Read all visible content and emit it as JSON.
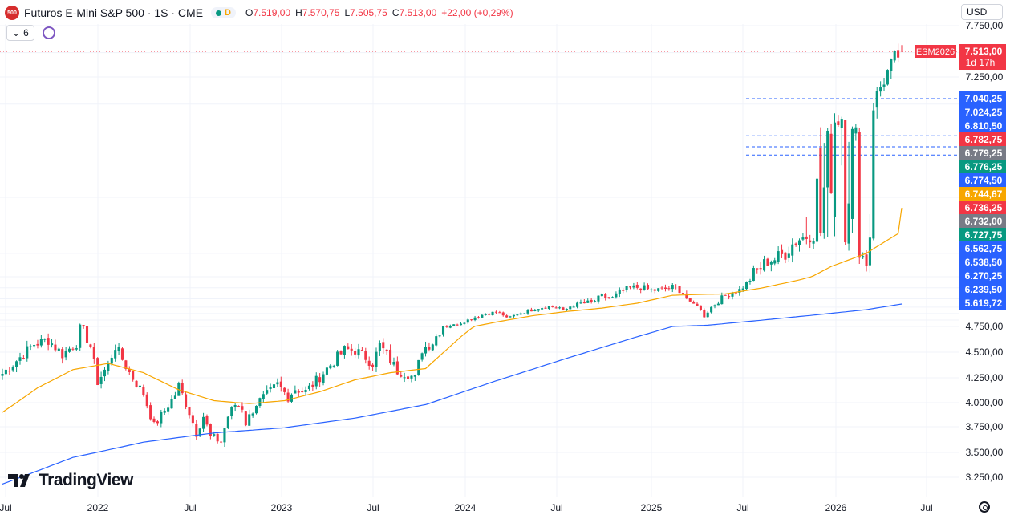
{
  "header": {
    "symbol_badge": "500",
    "title": "Futuros E-Mini S&P 500 · 1S · CME",
    "status_badge": "D",
    "ohlc": {
      "o_label": "O",
      "o": "7.519,00",
      "h_label": "H",
      "h": "7.570,75",
      "l_label": "L",
      "l": "7.505,75",
      "c_label": "C",
      "c": "7.513,00",
      "change": "+22,00 (+0,29%)"
    }
  },
  "toolbar": {
    "indicators_count": "6",
    "currency": "USD"
  },
  "branding": {
    "logo_text": "TradingView"
  },
  "colors": {
    "up": "#089981",
    "down": "#f23645",
    "ma_slow": "#f7a600",
    "ma_fast": "#2962ff",
    "blue_label": "#2962ff",
    "grey_label": "#787b86"
  },
  "chart_data": {
    "type": "candlestick",
    "ylim": [
      3150,
      7850
    ],
    "x_tick_labels": [
      "Jul",
      "2022",
      "Jul",
      "2023",
      "Jul",
      "2024",
      "Jul",
      "2025",
      "Jul",
      "2026",
      "Jul"
    ],
    "y_tick_labels": [
      "7.750,00",
      "7.250,00",
      "4.750,00",
      "4.500,00",
      "4.250,00",
      "4.000,00",
      "3.750,00",
      "3.500,00",
      "3.250,00"
    ],
    "last_price": {
      "value": "7.513,00",
      "symbol": "ESM2026",
      "countdown": "1d 17h"
    },
    "price_labels": [
      {
        "text": "7.040,25",
        "color": "blue"
      },
      {
        "text": "7.024,25",
        "color": "blue"
      },
      {
        "text": "6.810,50",
        "color": "blue"
      },
      {
        "text": "6.782,75",
        "color": "red"
      },
      {
        "text": "6.779,25",
        "color": "grey"
      },
      {
        "text": "6.776,25",
        "color": "green"
      },
      {
        "text": "6.774,50",
        "color": "blue"
      },
      {
        "text": "6.744,67",
        "color": "orange"
      },
      {
        "text": "6.736,25",
        "color": "red"
      },
      {
        "text": "6.732,00",
        "color": "grey"
      },
      {
        "text": "6.727,75",
        "color": "green"
      },
      {
        "text": "6.562,75",
        "color": "blue"
      },
      {
        "text": "6.538,50",
        "color": "blue"
      },
      {
        "text": "6.270,25",
        "color": "blue"
      },
      {
        "text": "6.239,50",
        "color": "blue"
      },
      {
        "text": "5.619,72",
        "color": "blue"
      }
    ],
    "dashed_levels": [
      7040,
      6810,
      6780,
      6774
    ],
    "anchors": [
      [
        0,
        4290
      ],
      [
        5,
        4450
      ],
      [
        9,
        4580
      ],
      [
        13,
        4620
      ],
      [
        17,
        4480
      ],
      [
        21,
        4590
      ],
      [
        22,
        4770
      ],
      [
        25,
        4560
      ],
      [
        27,
        4210
      ],
      [
        30,
        4380
      ],
      [
        32,
        4560
      ],
      [
        36,
        4300
      ],
      [
        40,
        4090
      ],
      [
        43,
        3760
      ],
      [
        46,
        3920
      ],
      [
        49,
        4080
      ],
      [
        50,
        4170
      ],
      [
        53,
        3900
      ],
      [
        55,
        3690
      ],
      [
        57,
        3860
      ],
      [
        59,
        3650
      ],
      [
        62,
        3610
      ],
      [
        64,
        3860
      ],
      [
        66,
        3980
      ],
      [
        68,
        3950
      ],
      [
        69,
        3790
      ],
      [
        72,
        3990
      ],
      [
        75,
        4080
      ],
      [
        78,
        4180
      ],
      [
        81,
        4060
      ],
      [
        83,
        4140
      ],
      [
        86,
        4110
      ],
      [
        89,
        4220
      ],
      [
        92,
        4340
      ],
      [
        95,
        4450
      ],
      [
        97,
        4520
      ],
      [
        100,
        4520
      ],
      [
        103,
        4450
      ],
      [
        105,
        4390
      ],
      [
        107,
        4570
      ],
      [
        110,
        4420
      ],
      [
        112,
        4320
      ],
      [
        115,
        4290
      ],
      [
        117,
        4240
      ],
      [
        119,
        4530
      ],
      [
        122,
        4600
      ],
      [
        125,
        4770
      ],
      [
        128,
        4800
      ],
      [
        131,
        4950
      ],
      [
        134,
        5110
      ],
      [
        137,
        5240
      ],
      [
        140,
        5300
      ],
      [
        142,
        5200
      ],
      [
        143,
        5050
      ],
      [
        146,
        5240
      ],
      [
        149,
        5350
      ],
      [
        152,
        5470
      ],
      [
        155,
        5520
      ],
      [
        158,
        5480
      ],
      [
        159,
        5330
      ],
      [
        161,
        5530
      ],
      [
        164,
        5640
      ],
      [
        167,
        5660
      ],
      [
        170,
        5800
      ],
      [
        173,
        5760
      ],
      [
        175,
        5900
      ],
      [
        178,
        6000
      ],
      [
        181,
        6010
      ],
      [
        184,
        5940
      ],
      [
        187,
        5960
      ],
      [
        190,
        6010
      ],
      [
        191,
        6000
      ],
      [
        193,
        5900
      ],
      [
        195,
        5620
      ],
      [
        197,
        5600
      ],
      [
        199,
        5150
      ],
      [
        201,
        5500
      ],
      [
        203,
        5700
      ],
      [
        205,
        5820
      ],
      [
        207,
        5900
      ],
      [
        209,
        5950
      ],
      [
        211,
        6100
      ],
      [
        213,
        6280
      ],
      [
        215,
        6350
      ],
      [
        217,
        6420
      ],
      [
        219,
        6440
      ],
      [
        222,
        6500
      ],
      [
        224,
        6600
      ],
      [
        226,
        6660
      ],
      [
        229,
        6700
      ],
      [
        231,
        6720
      ],
      [
        234,
        6760
      ],
      [
        236,
        6880
      ],
      [
        238,
        6910
      ],
      [
        239,
        6700
      ],
      [
        240,
        6810
      ],
      [
        242,
        6780
      ],
      [
        243,
        6530
      ],
      [
        245,
        6400
      ],
      [
        247,
        7000
      ],
      [
        249,
        7150
      ],
      [
        251,
        7300
      ],
      [
        253,
        7430
      ],
      [
        255,
        7513
      ]
    ],
    "ma_slow": [
      [
        0,
        3900
      ],
      [
        10,
        4150
      ],
      [
        20,
        4330
      ],
      [
        30,
        4390
      ],
      [
        40,
        4300
      ],
      [
        50,
        4130
      ],
      [
        60,
        4020
      ],
      [
        70,
        3990
      ],
      [
        80,
        4020
      ],
      [
        90,
        4110
      ],
      [
        100,
        4230
      ],
      [
        110,
        4300
      ],
      [
        120,
        4340
      ],
      [
        130,
        4650
      ],
      [
        140,
        4920
      ],
      [
        150,
        5160
      ],
      [
        160,
        5330
      ],
      [
        170,
        5460
      ],
      [
        180,
        5650
      ],
      [
        190,
        5830
      ],
      [
        198,
        5850
      ],
      [
        205,
        5860
      ],
      [
        215,
        5990
      ],
      [
        225,
        6160
      ],
      [
        235,
        6360
      ],
      [
        245,
        6500
      ],
      [
        255,
        6744
      ]
    ],
    "ma_fast": [
      [
        0,
        3180
      ],
      [
        20,
        3450
      ],
      [
        40,
        3600
      ],
      [
        60,
        3690
      ],
      [
        80,
        3740
      ],
      [
        100,
        3840
      ],
      [
        120,
        3980
      ],
      [
        140,
        4220
      ],
      [
        160,
        4440
      ],
      [
        180,
        4650
      ],
      [
        190,
        4750
      ],
      [
        200,
        4800
      ],
      [
        215,
        4990
      ],
      [
        230,
        5190
      ],
      [
        245,
        5400
      ],
      [
        255,
        5619
      ]
    ]
  }
}
